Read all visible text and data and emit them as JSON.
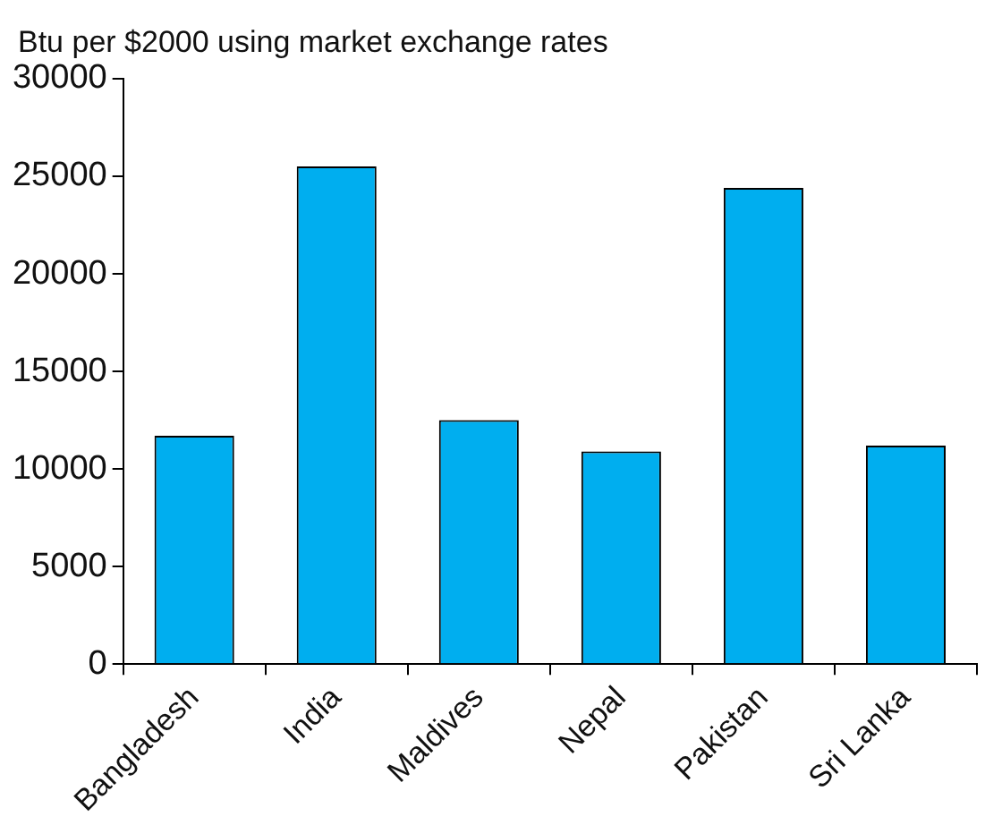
{
  "chart_data": {
    "type": "bar",
    "ylabel": "Btu per $2000 using market exchange rates",
    "categories": [
      "Bangladesh",
      "India",
      "Maldives",
      "Nepal",
      "Pakistan",
      "Sri Lanka"
    ],
    "values": [
      11700,
      25500,
      12500,
      10900,
      24400,
      11200
    ],
    "color": "#00aeef",
    "ylim": [
      0,
      30000
    ],
    "yticks": [
      0,
      5000,
      10000,
      15000,
      20000,
      25000,
      30000
    ],
    "grid": false,
    "legend": false
  }
}
